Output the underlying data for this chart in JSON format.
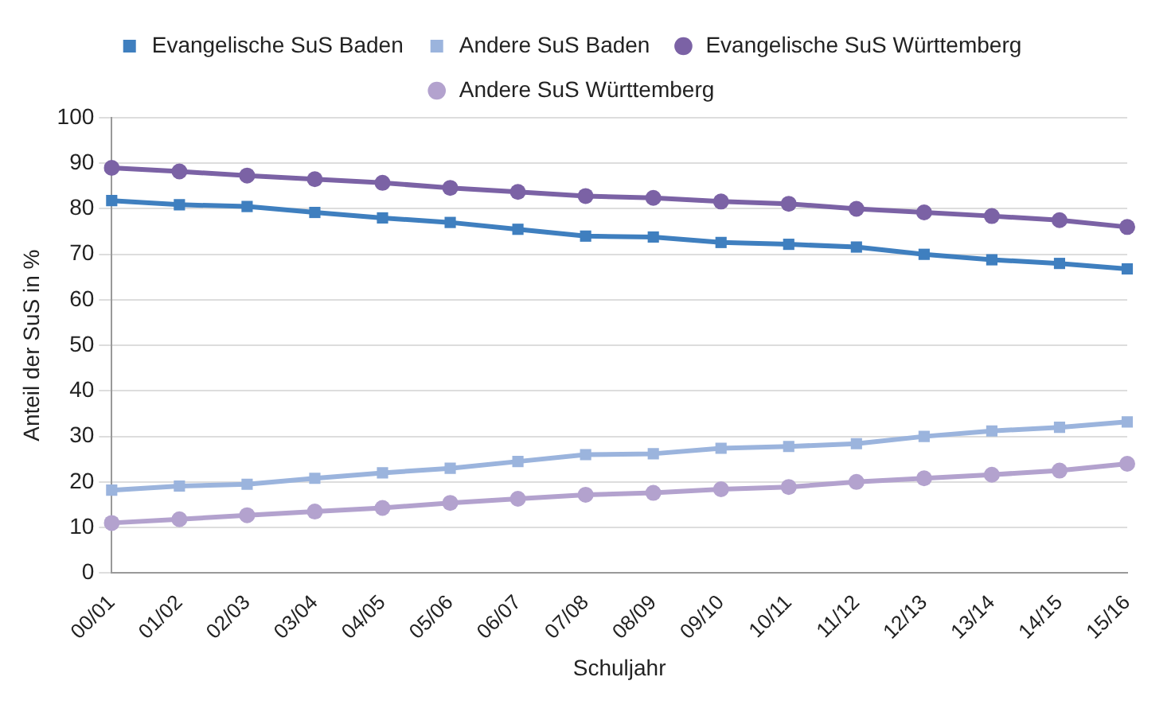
{
  "chart_data": {
    "type": "line",
    "xlabel": "Schuljahr",
    "ylabel": "Anteil der SuS in %",
    "categories": [
      "00/01",
      "01/02",
      "02/03",
      "03/04",
      "04/05",
      "05/06",
      "06/07",
      "07/08",
      "08/09",
      "09/10",
      "10/11",
      "11/12",
      "12/13",
      "13/14",
      "14/15",
      "15/16"
    ],
    "series": [
      {
        "name": "Evangelische SuS Baden",
        "color": "#3f7fbf",
        "marker": "square",
        "values": [
          81.8,
          80.9,
          80.5,
          79.2,
          78,
          77,
          75.5,
          74,
          73.8,
          72.6,
          72.2,
          71.6,
          70,
          68.8,
          68,
          66.8
        ]
      },
      {
        "name": "Andere SuS Baden",
        "color": "#9bb4dd",
        "marker": "square",
        "values": [
          18.2,
          19.1,
          19.5,
          20.8,
          22,
          23,
          24.5,
          26,
          26.2,
          27.4,
          27.8,
          28.4,
          30,
          31.2,
          32,
          33.2
        ]
      },
      {
        "name": "Evangelische SuS Württemberg",
        "color": "#7b62a5",
        "marker": "circle",
        "values": [
          89,
          88.2,
          87.3,
          86.5,
          85.7,
          84.6,
          83.7,
          82.8,
          82.4,
          81.6,
          81.1,
          80,
          79.2,
          78.4,
          77.5,
          76
        ]
      },
      {
        "name": "Andere SuS Württemberg",
        "color": "#b3a2ce",
        "marker": "circle",
        "values": [
          11,
          11.8,
          12.7,
          13.5,
          14.3,
          15.4,
          16.3,
          17.2,
          17.6,
          18.4,
          18.9,
          20,
          20.8,
          21.6,
          22.5,
          24
        ]
      }
    ],
    "ylim": [
      0,
      100
    ],
    "yticks": [
      0,
      10,
      20,
      30,
      40,
      50,
      60,
      70,
      80,
      90,
      100
    ],
    "grid": "y",
    "legend": "top",
    "line_style": "solid"
  }
}
